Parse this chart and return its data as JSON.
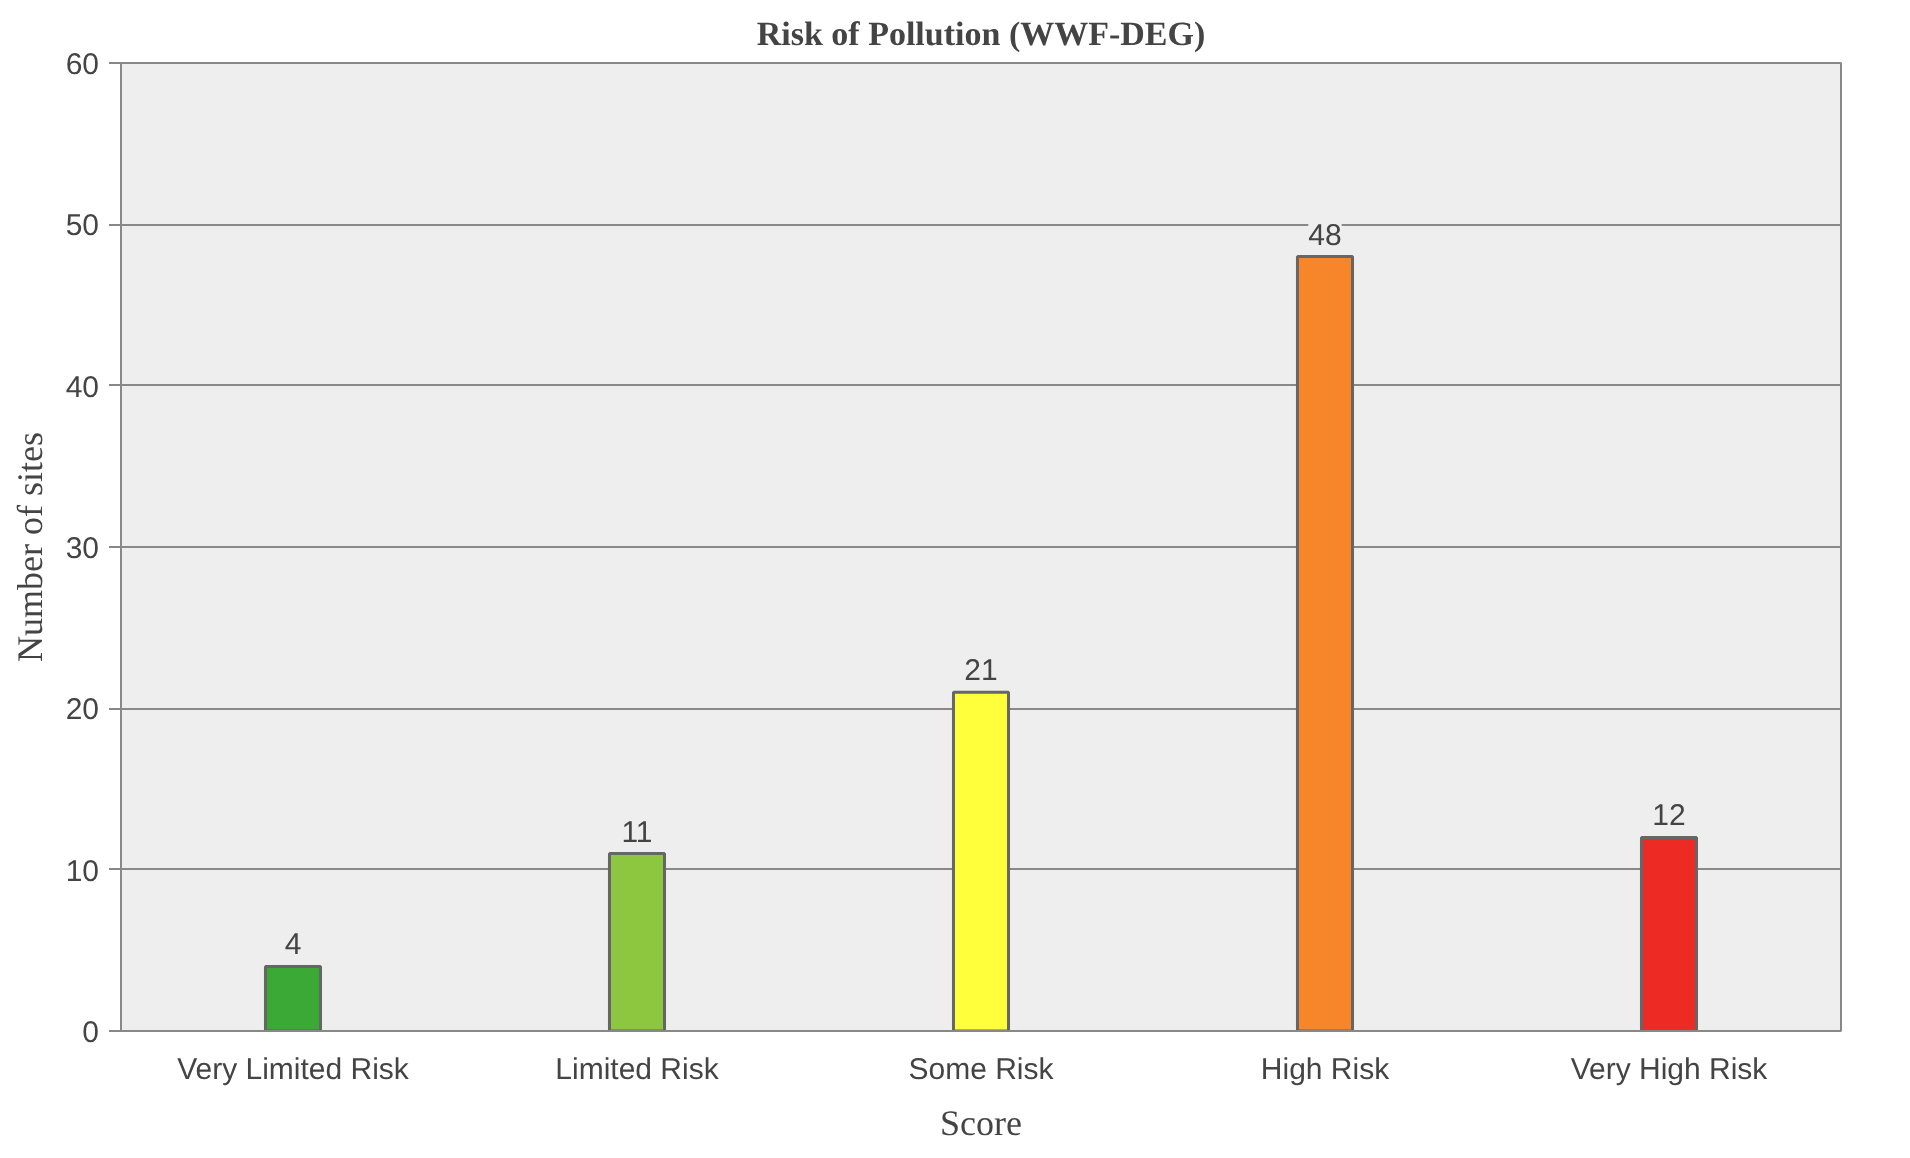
{
  "chart_data": {
    "type": "bar",
    "title": "Risk of Pollution (WWF-DEG)",
    "xlabel": "Score",
    "ylabel": "Number of sites",
    "categories": [
      "Very Limited Risk",
      "Limited Risk",
      "Some Risk",
      "High Risk",
      "Very High Risk"
    ],
    "values": [
      4,
      11,
      21,
      48,
      12
    ],
    "colors": [
      "#3aa935",
      "#8dc63f",
      "#ffff3c",
      "#f7862a",
      "#ee2a24"
    ],
    "ylim": [
      0,
      60
    ],
    "yticks": [
      0,
      10,
      20,
      30,
      40,
      50,
      60
    ],
    "grid": "y",
    "data_labels": true
  }
}
